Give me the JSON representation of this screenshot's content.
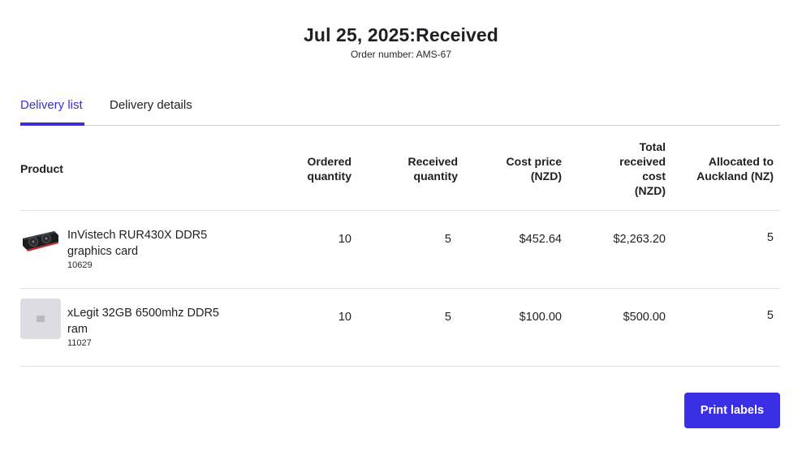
{
  "header": {
    "title": "Jul 25, 2025:Received",
    "order_number": "Order number: AMS-67"
  },
  "tabs": [
    {
      "label": "Delivery list",
      "active": true
    },
    {
      "label": "Delivery details",
      "active": false
    }
  ],
  "table": {
    "columns": {
      "product": "Product",
      "ordered_1": "Ordered",
      "ordered_2": "quantity",
      "received_1": "Received",
      "received_2": "quantity",
      "cost_1": "Cost price",
      "cost_2": "(NZD)",
      "total_1": "Total",
      "total_2": "received",
      "total_3": "cost",
      "total_4": "(NZD)",
      "allocated_1": "Allocated to",
      "allocated_2": "Auckland (NZ)"
    },
    "rows": [
      {
        "name": "InVistech RUR430X DDR5 graphics card",
        "sku": "10629",
        "image": "graphics-card-photo",
        "ordered": "10",
        "received": "5",
        "cost": "$452.64",
        "total": "$2,263.20",
        "allocated": "5"
      },
      {
        "name": "xLegit 32GB 6500mhz DDR5 ram",
        "sku": "11027",
        "image": "image-placeholder-icon",
        "ordered": "10",
        "received": "5",
        "cost": "$100.00",
        "total": "$500.00",
        "allocated": "5"
      }
    ]
  },
  "actions": {
    "print_labels": "Print labels"
  },
  "colors": {
    "accent": "#3b2fd6",
    "button": "#3b2fe6",
    "text": "#1f1f24",
    "divider": "#e3e3e6"
  }
}
